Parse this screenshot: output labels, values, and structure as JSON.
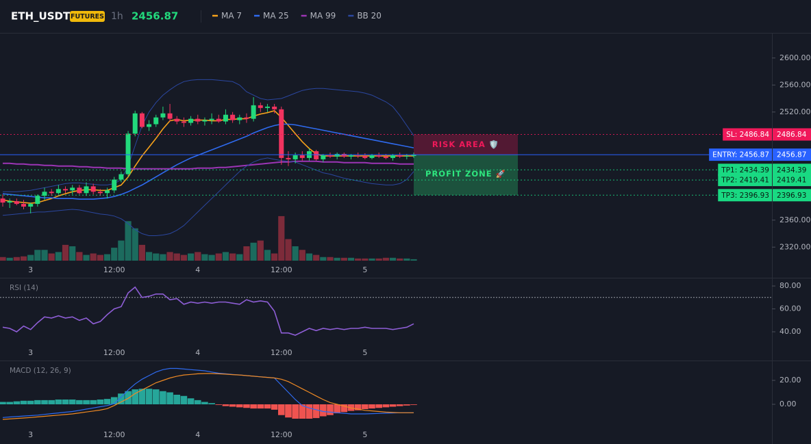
{
  "header": {
    "symbol": "ETH_USDT",
    "badge": "FUTURES",
    "interval": "1h",
    "price": 2456.87
  },
  "chart_data": [
    {
      "type": "candlestick",
      "categories": [
        null,
        null,
        null,
        null,
        "3",
        null,
        null,
        null,
        null,
        null,
        null,
        null,
        null,
        null,
        null,
        null,
        "12:00",
        null,
        null,
        null,
        null,
        null,
        null,
        null,
        null,
        null,
        null,
        null,
        "4",
        null,
        null,
        null,
        null,
        null,
        null,
        null,
        null,
        null,
        null,
        null,
        "12:00",
        null,
        null,
        null,
        null,
        null,
        null,
        null,
        null,
        null,
        null,
        null,
        "5",
        null,
        null,
        null,
        null,
        null,
        null,
        null
      ],
      "open": [
        2392,
        2386,
        2388,
        2384,
        2380,
        2384,
        2396,
        2402,
        2400,
        2406,
        2404,
        2408,
        2400,
        2410,
        2402,
        2400,
        2404,
        2420,
        2428,
        2488,
        2518,
        2498,
        2502,
        2512,
        2518,
        2510,
        2506,
        2504,
        2510,
        2506,
        2508,
        2510,
        2506,
        2516,
        2508,
        2512,
        2510,
        2530,
        2526,
        2528,
        2524,
        2452,
        2450,
        2456,
        2452,
        2462,
        2450,
        2456,
        2454,
        2458,
        2454,
        2456,
        2455,
        2452,
        2456,
        2454,
        2452,
        2456,
        2454,
        2455
      ],
      "high": [
        2398,
        2392,
        2392,
        2390,
        2386,
        2398,
        2408,
        2406,
        2412,
        2410,
        2412,
        2412,
        2416,
        2414,
        2406,
        2408,
        2424,
        2432,
        2492,
        2522,
        2520,
        2508,
        2516,
        2528,
        2532,
        2514,
        2512,
        2514,
        2516,
        2512,
        2518,
        2516,
        2524,
        2520,
        2516,
        2518,
        2542,
        2534,
        2532,
        2532,
        2528,
        2462,
        2460,
        2462,
        2466,
        2464,
        2458,
        2460,
        2460,
        2460,
        2458,
        2460,
        2459,
        2458,
        2460,
        2458,
        2458,
        2460,
        2458,
        2460
      ],
      "low": [
        2380,
        2378,
        2382,
        2376,
        2370,
        2380,
        2390,
        2396,
        2398,
        2400,
        2398,
        2398,
        2396,
        2398,
        2396,
        2392,
        2400,
        2416,
        2424,
        2484,
        2496,
        2492,
        2498,
        2508,
        2506,
        2502,
        2498,
        2500,
        2502,
        2500,
        2502,
        2504,
        2502,
        2504,
        2502,
        2504,
        2506,
        2520,
        2520,
        2518,
        2442,
        2440,
        2444,
        2448,
        2448,
        2448,
        2446,
        2452,
        2450,
        2452,
        2450,
        2452,
        2450,
        2450,
        2452,
        2450,
        2448,
        2452,
        2450,
        2452
      ],
      "close": [
        2386,
        2388,
        2384,
        2380,
        2384,
        2396,
        2402,
        2400,
        2406,
        2404,
        2408,
        2400,
        2410,
        2402,
        2400,
        2404,
        2420,
        2428,
        2488,
        2518,
        2498,
        2502,
        2512,
        2518,
        2510,
        2506,
        2504,
        2510,
        2506,
        2508,
        2510,
        2506,
        2516,
        2508,
        2512,
        2510,
        2530,
        2526,
        2528,
        2524,
        2452,
        2450,
        2456,
        2452,
        2462,
        2450,
        2456,
        2454,
        2458,
        2454,
        2456,
        2455,
        2452,
        2456,
        2454,
        2452,
        2456,
        2454,
        2455,
        2456.87
      ],
      "volume": [
        5,
        4,
        5,
        6,
        8,
        15,
        15,
        10,
        12,
        22,
        20,
        12,
        8,
        10,
        8,
        9,
        18,
        28,
        55,
        45,
        22,
        12,
        10,
        9,
        12,
        10,
        8,
        10,
        12,
        9,
        8,
        10,
        12,
        10,
        9,
        20,
        25,
        28,
        15,
        10,
        62,
        30,
        20,
        15,
        10,
        8,
        5,
        5,
        4,
        4,
        4,
        3,
        3,
        3,
        3,
        4,
        4,
        3,
        3,
        2
      ],
      "vlim": [
        0,
        100
      ],
      "up_color": "#22d97c",
      "down_color": "#f2335f",
      "volume_up_color": "#1c6b5e",
      "volume_down_color": "#7d2b3a",
      "overlays": [
        {
          "name": "MA 7",
          "color": "#f7a21b",
          "values": [
            2390,
            2388,
            2387,
            2386,
            2385,
            2386,
            2389,
            2392,
            2396,
            2399,
            2402,
            2404,
            2405,
            2405,
            2404,
            2404,
            2408,
            2412,
            2424,
            2440,
            2455,
            2468,
            2481,
            2495,
            2507,
            2509,
            2507,
            2508,
            2508,
            2508,
            2507,
            2507,
            2509,
            2509,
            2510,
            2510,
            2514,
            2517,
            2519,
            2522,
            2512,
            2500,
            2488,
            2476,
            2466,
            2458,
            2455,
            2455,
            2455,
            2455,
            2455,
            2455,
            2455,
            2455,
            2455,
            2455,
            2455,
            2455,
            2455,
            2455
          ]
        },
        {
          "name": "MA 25",
          "color": "#2f6bf0",
          "values": [
            2399,
            2398,
            2397,
            2396,
            2395,
            2394,
            2393,
            2393,
            2392,
            2392,
            2392,
            2391,
            2391,
            2391,
            2392,
            2393,
            2395,
            2398,
            2402,
            2407,
            2412,
            2418,
            2424,
            2430,
            2436,
            2442,
            2447,
            2452,
            2456,
            2460,
            2464,
            2468,
            2472,
            2476,
            2480,
            2484,
            2489,
            2493,
            2497,
            2500,
            2502,
            2502,
            2501,
            2499,
            2497,
            2495,
            2493,
            2491,
            2489,
            2487,
            2485,
            2483,
            2481,
            2479,
            2477,
            2475,
            2473,
            2471,
            2469,
            2467
          ]
        },
        {
          "name": "MA 99",
          "color": "#9c35b5",
          "values": [
            2444,
            2444,
            2443,
            2443,
            2442,
            2442,
            2441,
            2441,
            2440,
            2440,
            2440,
            2439,
            2439,
            2438,
            2438,
            2437,
            2437,
            2437,
            2436,
            2436,
            2436,
            2436,
            2436,
            2436,
            2436,
            2436,
            2436,
            2436,
            2437,
            2437,
            2437,
            2438,
            2438,
            2439,
            2440,
            2441,
            2442,
            2443,
            2444,
            2445,
            2446,
            2446,
            2447,
            2447,
            2447,
            2447,
            2446,
            2446,
            2446,
            2445,
            2445,
            2445,
            2445,
            2444,
            2444,
            2444,
            2444,
            2443,
            2443,
            2443
          ]
        },
        {
          "name": "BB 20",
          "color": "#2b47a0",
          "upper": [
            2402,
            2402,
            2402,
            2403,
            2404,
            2406,
            2408,
            2410,
            2412,
            2414,
            2415,
            2415,
            2414,
            2413,
            2412,
            2412,
            2414,
            2420,
            2440,
            2470,
            2500,
            2520,
            2534,
            2545,
            2553,
            2560,
            2565,
            2567,
            2568,
            2568,
            2568,
            2567,
            2566,
            2565,
            2560,
            2550,
            2545,
            2540,
            2538,
            2539,
            2540,
            2544,
            2548,
            2552,
            2554,
            2555,
            2555,
            2554,
            2553,
            2552,
            2551,
            2550,
            2548,
            2545,
            2540,
            2535,
            2528,
            2515,
            2500,
            2485
          ],
          "lower": [
            2367,
            2368,
            2369,
            2370,
            2371,
            2372,
            2372,
            2373,
            2374,
            2375,
            2376,
            2375,
            2373,
            2371,
            2369,
            2368,
            2366,
            2362,
            2355,
            2346,
            2340,
            2337,
            2337,
            2338,
            2340,
            2345,
            2352,
            2362,
            2372,
            2382,
            2392,
            2402,
            2412,
            2422,
            2432,
            2440,
            2446,
            2450,
            2452,
            2450,
            2448,
            2447,
            2446,
            2442,
            2438,
            2434,
            2430,
            2428,
            2425,
            2422,
            2420,
            2418,
            2416,
            2414,
            2413,
            2412,
            2412,
            2414,
            2420,
            2432
          ]
        }
      ],
      "levels": [
        {
          "label": "SL: 2486.84",
          "price": 2486.84,
          "color": "#f0195a",
          "text_color": "#ffffff",
          "style": "dotted"
        },
        {
          "label": "ENTRY: 2456.87",
          "price": 2456.87,
          "color": "#2962ff",
          "text_color": "#ffffff",
          "style": "solid"
        },
        {
          "label": "TP1: 2434.39",
          "price": 2434.39,
          "color": "#19d982",
          "text_color": "#0b1a12",
          "style": "dotted"
        },
        {
          "label": "TP2: 2419.41",
          "price": 2419.41,
          "color": "#19d982",
          "text_color": "#0b1a12",
          "style": "dotted"
        },
        {
          "label": "TP3: 2396.93",
          "price": 2396.93,
          "color": "#19d982",
          "text_color": "#0b1a12",
          "style": "dotted"
        }
      ],
      "zones": [
        {
          "label": "RISK AREA 🛡️",
          "color": "#f0195a"
        },
        {
          "label": "PROFIT ZONE 🚀",
          "color": "#2ee67f"
        }
      ],
      "ylim": [
        2300,
        2635
      ],
      "yticks": [
        {
          "value": 2320,
          "label": "2320.00"
        },
        {
          "value": 2360,
          "label": "2360.00"
        },
        {
          "value": 2520,
          "label": "2520.00"
        },
        {
          "value": 2560,
          "label": "2560.00"
        },
        {
          "value": 2600,
          "label": "2600.00"
        }
      ]
    },
    {
      "type": "line",
      "title": "RSI (14)",
      "color": "#8e5ed6",
      "values": [
        44,
        43,
        40,
        45,
        42,
        48,
        53,
        52,
        54,
        52,
        53,
        50,
        52,
        47,
        49,
        55,
        60,
        62,
        74,
        79,
        70,
        71,
        73,
        73,
        68,
        69,
        64,
        66,
        65,
        66,
        65,
        66,
        66,
        65,
        64,
        68,
        66,
        67,
        66,
        58,
        39,
        39,
        37,
        40,
        43,
        41,
        43,
        42,
        43,
        42,
        43,
        43,
        44,
        43,
        43,
        43,
        42,
        43,
        44,
        47
      ],
      "reference_line": 70,
      "ylim": [
        30,
        86
      ],
      "yticks": [
        {
          "value": 40,
          "label": "40.00"
        },
        {
          "value": 60,
          "label": "60.00"
        },
        {
          "value": 80,
          "label": "80.00"
        }
      ]
    },
    {
      "type": "macd",
      "title": "MACD (12, 26, 9)",
      "histogram": [
        2,
        2,
        2.5,
        3,
        3,
        3.5,
        3.5,
        3.5,
        4,
        4,
        4,
        3.5,
        3.5,
        3.5,
        4,
        4.5,
        6,
        9,
        11,
        12.5,
        13,
        13,
        12.5,
        11,
        10,
        8,
        7,
        5,
        3.5,
        2,
        1,
        -0.5,
        -1.5,
        -2,
        -2.5,
        -3,
        -3.5,
        -3.5,
        -3.5,
        -4.5,
        -9,
        -11,
        -12,
        -12,
        -12,
        -11.5,
        -10,
        -9,
        -7.5,
        -6.5,
        -5.5,
        -5,
        -4,
        -3.5,
        -3,
        -2.5,
        -2,
        -1.5,
        -1,
        -0.5
      ],
      "macd": [
        -11,
        -10.6,
        -10.2,
        -9.8,
        -9.4,
        -9,
        -8.4,
        -7.8,
        -7.2,
        -6.6,
        -6,
        -5,
        -4,
        -3,
        -2,
        -1,
        0.5,
        6,
        12,
        17,
        21,
        24,
        27,
        29,
        30,
        30,
        29.5,
        29,
        28.5,
        28,
        27,
        26,
        25.5,
        25,
        24.5,
        24,
        23.5,
        23,
        22.5,
        22,
        16,
        10,
        4,
        -1,
        -3,
        -4.5,
        -6,
        -6.5,
        -7,
        -7.5,
        -8,
        -8,
        -8,
        -7.8,
        -7.6,
        -7.4,
        -7.2,
        -7,
        -7,
        -7
      ],
      "signal": [
        -12.6,
        -12.2,
        -11.8,
        -11.4,
        -11,
        -10.5,
        -10,
        -9.5,
        -9,
        -8.5,
        -8,
        -7.2,
        -6.4,
        -5.6,
        -4.8,
        -3.6,
        -1,
        2,
        5,
        9,
        12,
        15,
        18,
        20,
        22,
        23.5,
        24.5,
        25,
        25.5,
        25.7,
        25.7,
        25.5,
        25.2,
        24.8,
        24.5,
        24,
        23.5,
        23,
        22.5,
        22,
        21,
        19,
        16,
        13,
        10,
        7,
        4,
        1.5,
        0,
        -1.5,
        -3,
        -4,
        -5,
        -5.5,
        -6,
        -6.5,
        -6.8,
        -7,
        -7,
        -7
      ],
      "macd_color": "#2f6bf0",
      "signal_color": "#f08a24",
      "positive_color": "#26a69a",
      "negative_color": "#ef5350",
      "ylim": [
        -21,
        35
      ],
      "yticks": [
        {
          "value": 0,
          "label": "0.00"
        },
        {
          "value": 20,
          "label": "20.00"
        }
      ]
    }
  ]
}
